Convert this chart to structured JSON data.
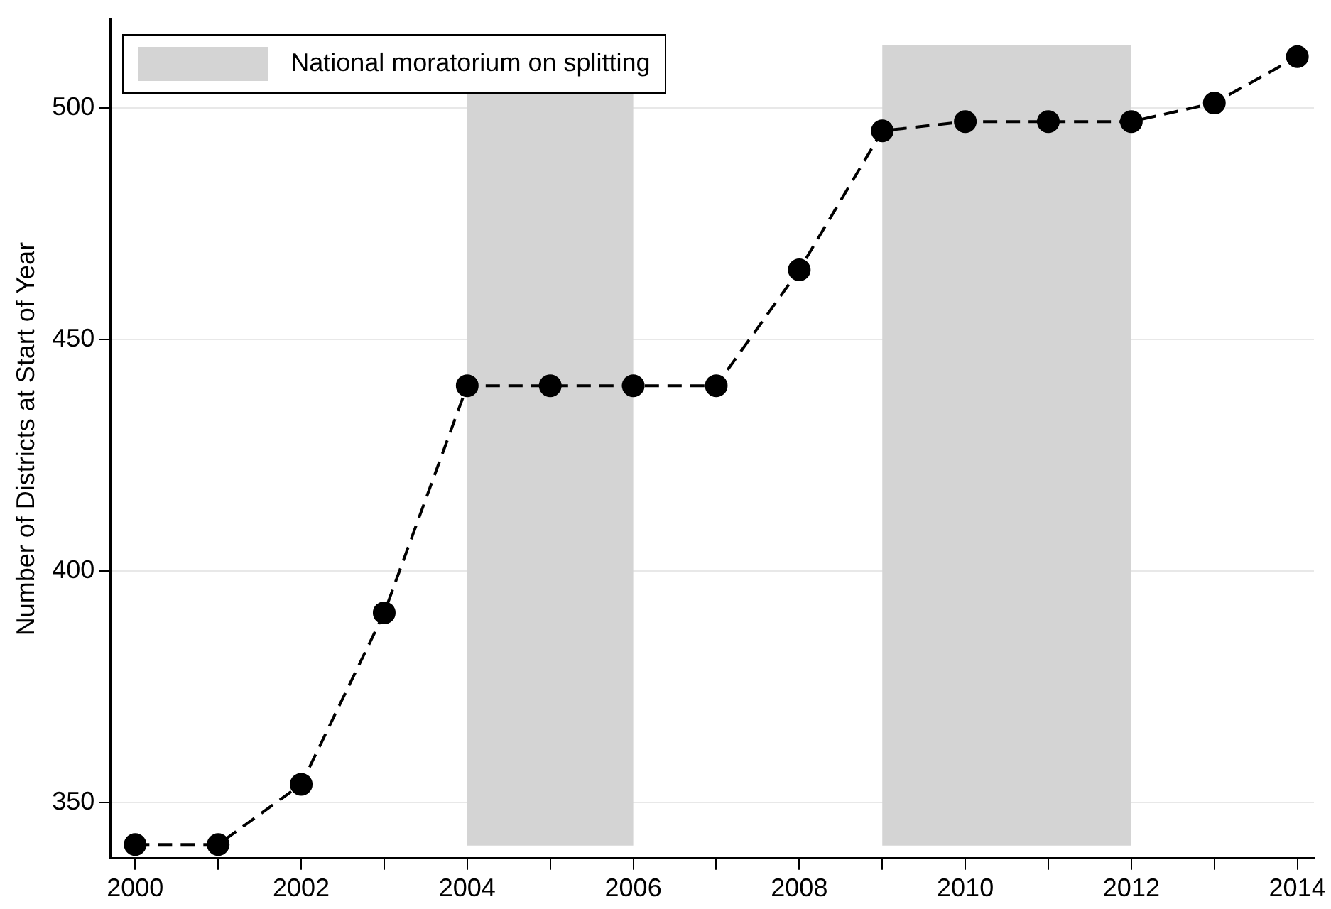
{
  "chart_data": {
    "type": "line",
    "ylabel": "Number of Districts at Start of Year",
    "x": [
      2000,
      2001,
      2002,
      2003,
      2004,
      2005,
      2006,
      2007,
      2008,
      2009,
      2010,
      2011,
      2012,
      2013,
      2014
    ],
    "series": [
      {
        "color": "#000000",
        "values": [
          341,
          341,
          354,
          391,
          440,
          440,
          440,
          440,
          465,
          495,
          497,
          497,
          497,
          501,
          511
        ]
      }
    ],
    "xlim": [
      1999.7,
      2014.2
    ],
    "ylim": [
      338,
      519
    ],
    "xticks": [
      2000,
      {
        "value": 2001,
        "label": null
      },
      2002,
      {
        "value": 2003,
        "label": null
      },
      2004,
      {
        "value": 2005,
        "label": null
      },
      2006,
      {
        "value": 2007,
        "label": null
      },
      2008,
      {
        "value": 2009,
        "label": null
      },
      2010,
      {
        "value": 2011,
        "label": null
      },
      2012,
      {
        "value": 2013,
        "label": null
      },
      2014
    ],
    "yticks": [
      350,
      400,
      450,
      500
    ],
    "bands": [
      {
        "axis": "x",
        "from": 2004,
        "to": 2006,
        "label": "National moratorium on splitting",
        "color": "#d4d4d4"
      },
      {
        "axis": "x",
        "from": 2009,
        "to": 2012,
        "color": "#d4d4d4"
      }
    ],
    "grid": "y",
    "legend": "top left",
    "marker": "circle",
    "line_style": "dashed"
  }
}
